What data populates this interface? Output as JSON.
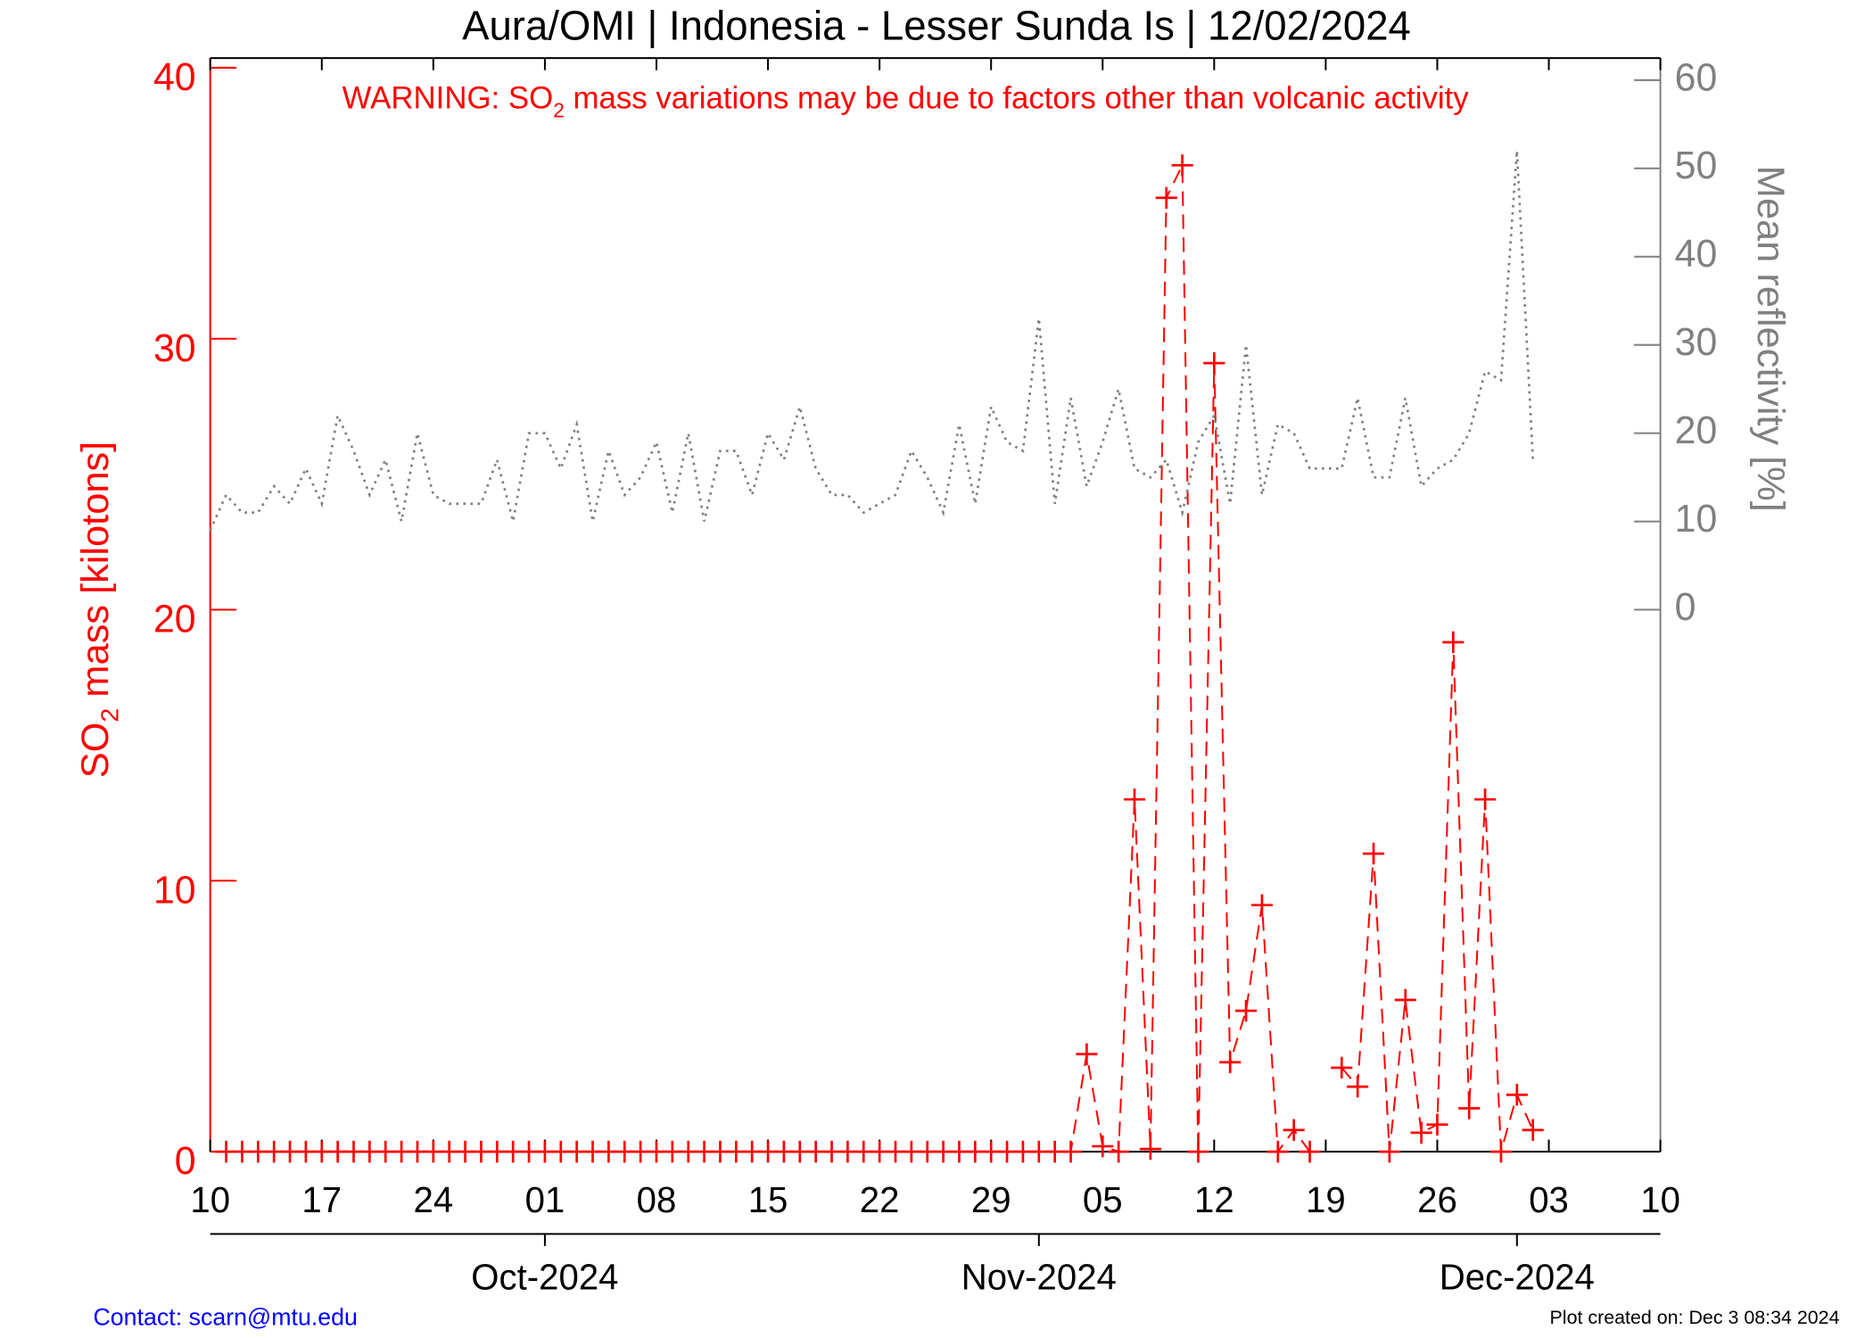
{
  "chart_data": {
    "type": "line",
    "title": "Aura/OMI | Indonesia - Lesser Sunda Is | 12/02/2024",
    "annotation": {
      "pre": "WARNING: SO",
      "sub": "2",
      "post": " mass variations may be due to factors other than volcanic activity"
    },
    "ylabel": {
      "pre": "SO",
      "sub": "2",
      "post": " mass [kilotons]"
    },
    "y2label": "Mean reflectivity [%]",
    "contact": "Contact: scarn@mtu.edu",
    "created": "Plot created on: Dec  3 08:34 2024",
    "xlim": [
      "2024-09-10",
      "2024-12-10"
    ],
    "xticks": [
      {
        "value": "2024-09-10",
        "label": "10"
      },
      {
        "value": "2024-09-17",
        "label": "17"
      },
      {
        "value": "2024-09-24",
        "label": "24"
      },
      {
        "value": "2024-10-01",
        "label": "01"
      },
      {
        "value": "2024-10-08",
        "label": "08"
      },
      {
        "value": "2024-10-15",
        "label": "15"
      },
      {
        "value": "2024-10-22",
        "label": "22"
      },
      {
        "value": "2024-10-29",
        "label": "29"
      },
      {
        "value": "2024-11-05",
        "label": "05"
      },
      {
        "value": "2024-11-12",
        "label": "12"
      },
      {
        "value": "2024-11-19",
        "label": "19"
      },
      {
        "value": "2024-11-26",
        "label": "26"
      },
      {
        "value": "2024-12-03",
        "label": "03"
      },
      {
        "value": "2024-12-10",
        "label": "10"
      }
    ],
    "monthticks": [
      {
        "value": "2024-10-01",
        "label": "Oct-2024"
      },
      {
        "value": "2024-11-01",
        "label": "Nov-2024"
      },
      {
        "value": "2024-12-01",
        "label": "Dec-2024"
      }
    ],
    "ylim": [
      0,
      40
    ],
    "yticks": [
      0,
      10,
      20,
      30,
      40
    ],
    "y2lim": [
      -61.4,
      61.4
    ],
    "y2ticks": [
      0,
      10,
      20,
      30,
      40,
      50,
      60
    ],
    "ycolor": "#ff0000",
    "y2color": "#808080",
    "x": [
      "2024-09-10",
      "2024-09-11",
      "2024-09-12",
      "2024-09-13",
      "2024-09-14",
      "2024-09-15",
      "2024-09-16",
      "2024-09-17",
      "2024-09-18",
      "2024-09-19",
      "2024-09-20",
      "2024-09-21",
      "2024-09-22",
      "2024-09-23",
      "2024-09-24",
      "2024-09-25",
      "2024-09-26",
      "2024-09-27",
      "2024-09-28",
      "2024-09-29",
      "2024-09-30",
      "2024-10-01",
      "2024-10-02",
      "2024-10-03",
      "2024-10-04",
      "2024-10-05",
      "2024-10-06",
      "2024-10-07",
      "2024-10-08",
      "2024-10-09",
      "2024-10-10",
      "2024-10-11",
      "2024-10-12",
      "2024-10-13",
      "2024-10-14",
      "2024-10-15",
      "2024-10-16",
      "2024-10-17",
      "2024-10-18",
      "2024-10-19",
      "2024-10-20",
      "2024-10-21",
      "2024-10-22",
      "2024-10-23",
      "2024-10-24",
      "2024-10-25",
      "2024-10-26",
      "2024-10-27",
      "2024-10-28",
      "2024-10-29",
      "2024-10-30",
      "2024-10-31",
      "2024-11-01",
      "2024-11-02",
      "2024-11-03",
      "2024-11-04",
      "2024-11-05",
      "2024-11-06",
      "2024-11-07",
      "2024-11-08",
      "2024-11-09",
      "2024-11-10",
      "2024-11-11",
      "2024-11-12",
      "2024-11-13",
      "2024-11-14",
      "2024-11-15",
      "2024-11-16",
      "2024-11-17",
      "2024-11-18",
      "2024-11-19",
      "2024-11-20",
      "2024-11-21",
      "2024-11-22",
      "2024-11-23",
      "2024-11-24",
      "2024-11-25",
      "2024-11-26",
      "2024-11-27",
      "2024-11-28",
      "2024-11-29",
      "2024-11-30",
      "2024-12-01",
      "2024-12-02"
    ],
    "series": [
      {
        "color": "#ff0000",
        "style": "dashed",
        "marker": "cross",
        "values": [
          null,
          0,
          0,
          0,
          0,
          0,
          0,
          0,
          0,
          0,
          0,
          0,
          0,
          0,
          0,
          0,
          0,
          0,
          0,
          0,
          0,
          0,
          0,
          0,
          0,
          0,
          0,
          0,
          0,
          0,
          0,
          0,
          0,
          0,
          0,
          0,
          0,
          0,
          0,
          0,
          0,
          0,
          0,
          0,
          0,
          0,
          0,
          0,
          0,
          0,
          0,
          0,
          0,
          0,
          0,
          3.6,
          0.2,
          0,
          13,
          0.1,
          35.2,
          36.4,
          0,
          29.1,
          3.3,
          5.2,
          9.1,
          0,
          0.8,
          0,
          null,
          3.1,
          2.4,
          11,
          0,
          5.6,
          0.7,
          1,
          18.8,
          1.6,
          13,
          0,
          2.1,
          0.8
        ]
      },
      {
        "color": "#808080",
        "style": "dotted",
        "axis": "y2",
        "values": [
          9,
          13,
          11,
          11,
          14,
          12,
          16,
          12,
          22,
          18,
          13,
          17,
          10,
          20,
          13,
          12,
          12,
          12,
          17,
          10,
          20,
          20,
          16,
          21,
          10,
          18,
          13,
          15,
          19,
          11,
          20,
          10,
          18,
          18,
          13,
          20,
          17,
          23,
          16,
          13,
          13,
          11,
          12,
          13,
          18,
          15,
          11,
          21,
          12,
          23,
          19,
          18,
          33,
          12,
          24,
          14,
          19,
          25,
          16,
          15,
          17,
          11,
          19,
          22,
          12,
          30,
          13,
          21,
          20,
          16,
          16,
          16,
          24,
          15,
          15,
          24,
          14,
          16,
          17,
          20,
          27,
          26,
          52,
          17
        ]
      }
    ]
  }
}
